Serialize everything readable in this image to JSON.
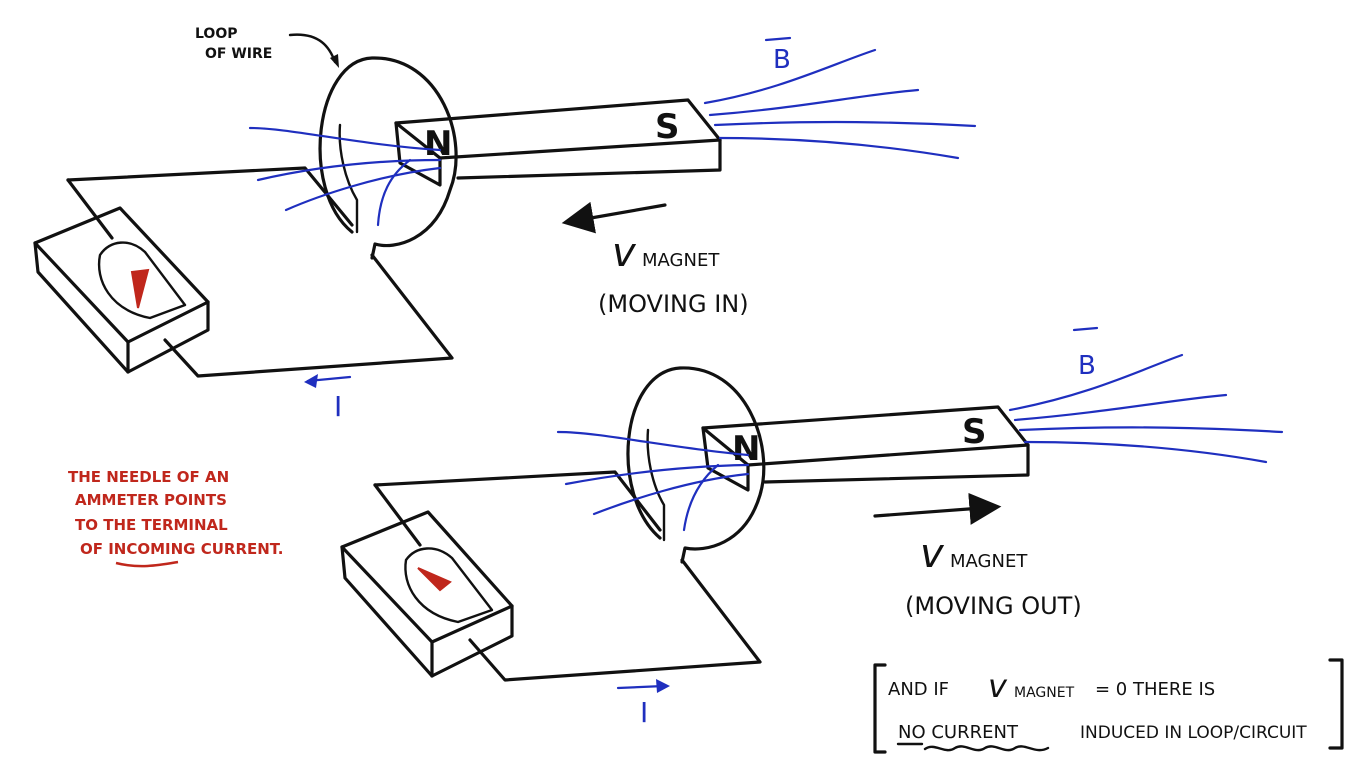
{
  "labels": {
    "loop_line1": "LOOP",
    "loop_line2": "OF WIRE",
    "b_field": "B",
    "pole_n": "N",
    "pole_s": "S",
    "v_symbol": "v",
    "v_sub": "MAGNET",
    "moving_in": "(MOVING IN)",
    "moving_out": "(MOVING OUT)",
    "current": "I"
  },
  "note": {
    "lines": [
      "THE NEEDLE OF AN",
      "AMMETER POINTS",
      "TO THE TERMINAL",
      "OF INCOMING CURRENT."
    ]
  },
  "box": {
    "line1_pre": "AND IF",
    "line1_sym": "v",
    "line1_sub": "MAGNET",
    "line1_post": "= 0   THERE IS",
    "line2_a": "NO CURRENT",
    "line2_b": "INDUCED IN LOOP/CIRCUIT"
  },
  "colors": {
    "ink": "#111111",
    "field": "#1f2fbf",
    "annotation": "#c0271c"
  }
}
